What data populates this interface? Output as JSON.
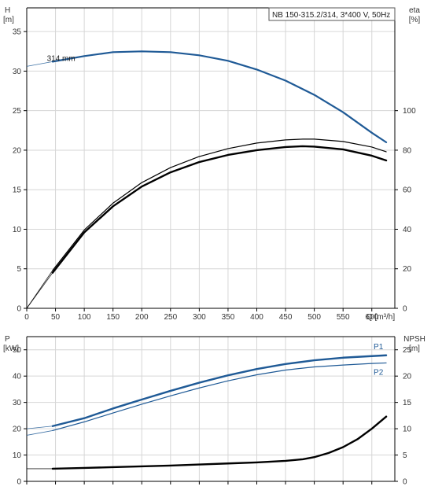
{
  "chart_data": [
    {
      "type": "line",
      "title": "NB 150-315.2/314, 3*400 V, 50Hz",
      "xlabel": "Q [m³/h]",
      "ylabel_left": {
        "name": "H",
        "unit": "[m]"
      },
      "ylabel_right": {
        "name": "eta",
        "unit": "[%]"
      },
      "xlim": [
        0,
        640
      ],
      "ylim_left": [
        0,
        38
      ],
      "ylim_right": [
        0,
        152
      ],
      "x_ticks": [
        "0",
        "50",
        "100",
        "150",
        "200",
        "250",
        "300",
        "350",
        "400",
        "450",
        "500",
        "550",
        "600"
      ],
      "y_left_ticks": [
        "0",
        "5",
        "10",
        "15",
        "20",
        "25",
        "30",
        "35"
      ],
      "y_right_ticks": [
        "0",
        "20",
        "40",
        "60",
        "80",
        "100"
      ],
      "grid": true,
      "series": [
        {
          "name": "314 mm",
          "axis": "left",
          "color": "#1f5a96",
          "x": [
            45,
            100,
            150,
            200,
            250,
            300,
            350,
            400,
            450,
            500,
            550,
            600,
            625
          ],
          "values": [
            31.2,
            31.9,
            32.4,
            32.5,
            32.4,
            32.0,
            31.3,
            30.2,
            28.8,
            27.0,
            24.8,
            22.2,
            21.0
          ],
          "extension": {
            "x": [
              0,
              45
            ],
            "values": [
              30.6,
              31.2
            ]
          }
        },
        {
          "axis": "right",
          "color": "#000000",
          "x": [
            45,
            100,
            150,
            200,
            250,
            300,
            350,
            400,
            450,
            480,
            500,
            550,
            600,
            625
          ],
          "values": [
            19.2,
            39.6,
            53.2,
            63.6,
            71.2,
            76.8,
            80.8,
            83.6,
            85.2,
            85.6,
            85.6,
            84.4,
            81.6,
            79.2
          ],
          "extension": {
            "x": [
              0,
              45
            ],
            "values": [
              0,
              19.2
            ]
          }
        },
        {
          "axis": "right",
          "color": "#000000",
          "thick": true,
          "x": [
            45,
            100,
            150,
            200,
            250,
            300,
            350,
            400,
            450,
            480,
            500,
            550,
            600,
            625
          ],
          "values": [
            18.0,
            38.4,
            51.6,
            61.6,
            68.8,
            74.0,
            77.6,
            80.0,
            81.6,
            82.0,
            81.8,
            80.4,
            77.2,
            74.8
          ],
          "extension": {
            "x": [
              0,
              45
            ],
            "values": [
              0,
              18.0
            ]
          }
        }
      ]
    },
    {
      "type": "line",
      "xlabel": "",
      "ylabel_left": {
        "name": "P",
        "unit": "[kW]"
      },
      "ylabel_right": {
        "name": "NPSH",
        "unit": "[m]"
      },
      "xlim": [
        0,
        640
      ],
      "ylim_left": [
        0,
        55
      ],
      "ylim_right": [
        0,
        27.5
      ],
      "y_left_ticks": [
        "0",
        "10",
        "20",
        "30",
        "40",
        "50"
      ],
      "y_right_ticks": [
        "0",
        "5",
        "10",
        "15",
        "20",
        "25"
      ],
      "grid": true,
      "series": [
        {
          "name": "P1",
          "axis": "left",
          "color": "#1f5a96",
          "thick": true,
          "x": [
            45,
            100,
            150,
            200,
            250,
            300,
            350,
            400,
            450,
            500,
            550,
            600,
            625
          ],
          "values": [
            21.0,
            24.0,
            27.7,
            31.1,
            34.4,
            37.5,
            40.3,
            42.7,
            44.6,
            46.0,
            47.0,
            47.6,
            47.9
          ],
          "extension": {
            "x": [
              0,
              45
            ],
            "values": [
              20.0,
              21.0
            ]
          }
        },
        {
          "name": "P2",
          "axis": "left",
          "color": "#1f5a96",
          "x": [
            45,
            100,
            150,
            200,
            250,
            300,
            350,
            400,
            450,
            500,
            550,
            600,
            625
          ],
          "values": [
            19.3,
            22.6,
            26.0,
            29.3,
            32.5,
            35.5,
            38.2,
            40.5,
            42.3,
            43.5,
            44.2,
            44.8,
            45.0
          ],
          "extension": {
            "x": [
              0,
              45
            ],
            "values": [
              17.5,
              19.3
            ]
          }
        },
        {
          "name": "NPSH",
          "axis": "right",
          "color": "#000000",
          "thick": true,
          "x": [
            45,
            100,
            150,
            200,
            250,
            300,
            350,
            400,
            450,
            480,
            500,
            525,
            550,
            575,
            600,
            625
          ],
          "values": [
            2.4,
            2.55,
            2.7,
            2.85,
            3.0,
            3.2,
            3.4,
            3.6,
            3.9,
            4.2,
            4.6,
            5.4,
            6.5,
            8.0,
            10.0,
            12.3
          ],
          "extension": {
            "x": [
              0,
              45
            ],
            "values": [
              2.4,
              2.4
            ]
          }
        }
      ]
    }
  ]
}
